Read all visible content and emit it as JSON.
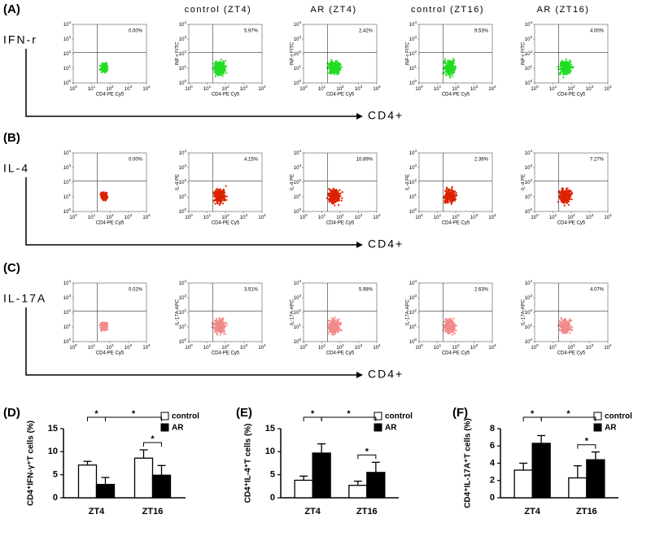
{
  "column_headers": [
    "control (ZT4)",
    "AR (ZT4)",
    "control (ZT16)",
    "AR (ZT16)"
  ],
  "flow_tick_base": "10",
  "flow_tick_exponents": [
    "0",
    "1",
    "2",
    "3",
    "4"
  ],
  "flow_panels": [
    {
      "panel_label": "(A)",
      "row_label": "IFN-r",
      "y_axis_label": "INF-r FITC",
      "x_axis_label": "CD4-PE Cy5",
      "arrow_label": "CD4+",
      "color": "#22dd22",
      "percentages": [
        "0.00%",
        "5.97%",
        "2.42%",
        "9.53%",
        "4.00%"
      ]
    },
    {
      "panel_label": "(B)",
      "row_label": "IL-4",
      "y_axis_label": "IL-4 PE",
      "x_axis_label": "CD4-PE Cy5",
      "arrow_label": "CD4+",
      "color": "#dd2200",
      "percentages": [
        "0.00%",
        "4.15%",
        "10.89%",
        "2.36%",
        "7.27%"
      ]
    },
    {
      "panel_label": "(C)",
      "row_label": "IL-17A",
      "y_axis_label": "IL-17A-APC",
      "x_axis_label": "CD4-PE Cy5",
      "arrow_label": "CD4+",
      "color": "#f28a8a",
      "percentages": [
        "0.02%",
        "3.51%",
        "5.98%",
        "2.63%",
        "4.07%"
      ]
    }
  ],
  "chart_data": [
    {
      "type": "bar",
      "panel_label": "(D)",
      "y_label": "CD4⁺IFN-γ⁺T cells (%)",
      "categories": [
        "ZT4",
        "ZT16"
      ],
      "series": [
        {
          "name": "control",
          "color": "#ffffff",
          "values": [
            7.1,
            8.6
          ],
          "errors": [
            0.8,
            1.8
          ]
        },
        {
          "name": "AR",
          "color": "#000000",
          "values": [
            2.9,
            4.9
          ],
          "errors": [
            1.5,
            2.1
          ]
        }
      ],
      "ylim": [
        0,
        15
      ],
      "yticks": [
        0,
        5,
        10,
        15
      ],
      "annotations": [
        "*",
        "*",
        "*"
      ]
    },
    {
      "type": "bar",
      "panel_label": "(E)",
      "y_label": "CD4⁺IL-4⁺T cells (%)",
      "categories": [
        "ZT4",
        "ZT16"
      ],
      "series": [
        {
          "name": "control",
          "color": "#ffffff",
          "values": [
            3.8,
            2.7
          ],
          "errors": [
            0.9,
            0.9
          ]
        },
        {
          "name": "AR",
          "color": "#000000",
          "values": [
            9.7,
            5.5
          ],
          "errors": [
            2.0,
            2.2
          ]
        }
      ],
      "ylim": [
        0,
        15
      ],
      "yticks": [
        0,
        5,
        10,
        15
      ],
      "annotations": [
        "*",
        "*",
        "*"
      ]
    },
    {
      "type": "bar",
      "panel_label": "(F)",
      "y_label": "CD4⁺IL-17A⁺T cells (%)",
      "categories": [
        "ZT4",
        "ZT16"
      ],
      "series": [
        {
          "name": "control",
          "color": "#ffffff",
          "values": [
            3.2,
            2.3
          ],
          "errors": [
            0.8,
            1.4
          ]
        },
        {
          "name": "AR",
          "color": "#000000",
          "values": [
            6.3,
            4.4
          ],
          "errors": [
            0.9,
            0.9
          ]
        }
      ],
      "ylim": [
        0,
        8
      ],
      "yticks": [
        0,
        2,
        4,
        6,
        8
      ],
      "annotations": [
        "*",
        "*",
        "*"
      ]
    }
  ]
}
